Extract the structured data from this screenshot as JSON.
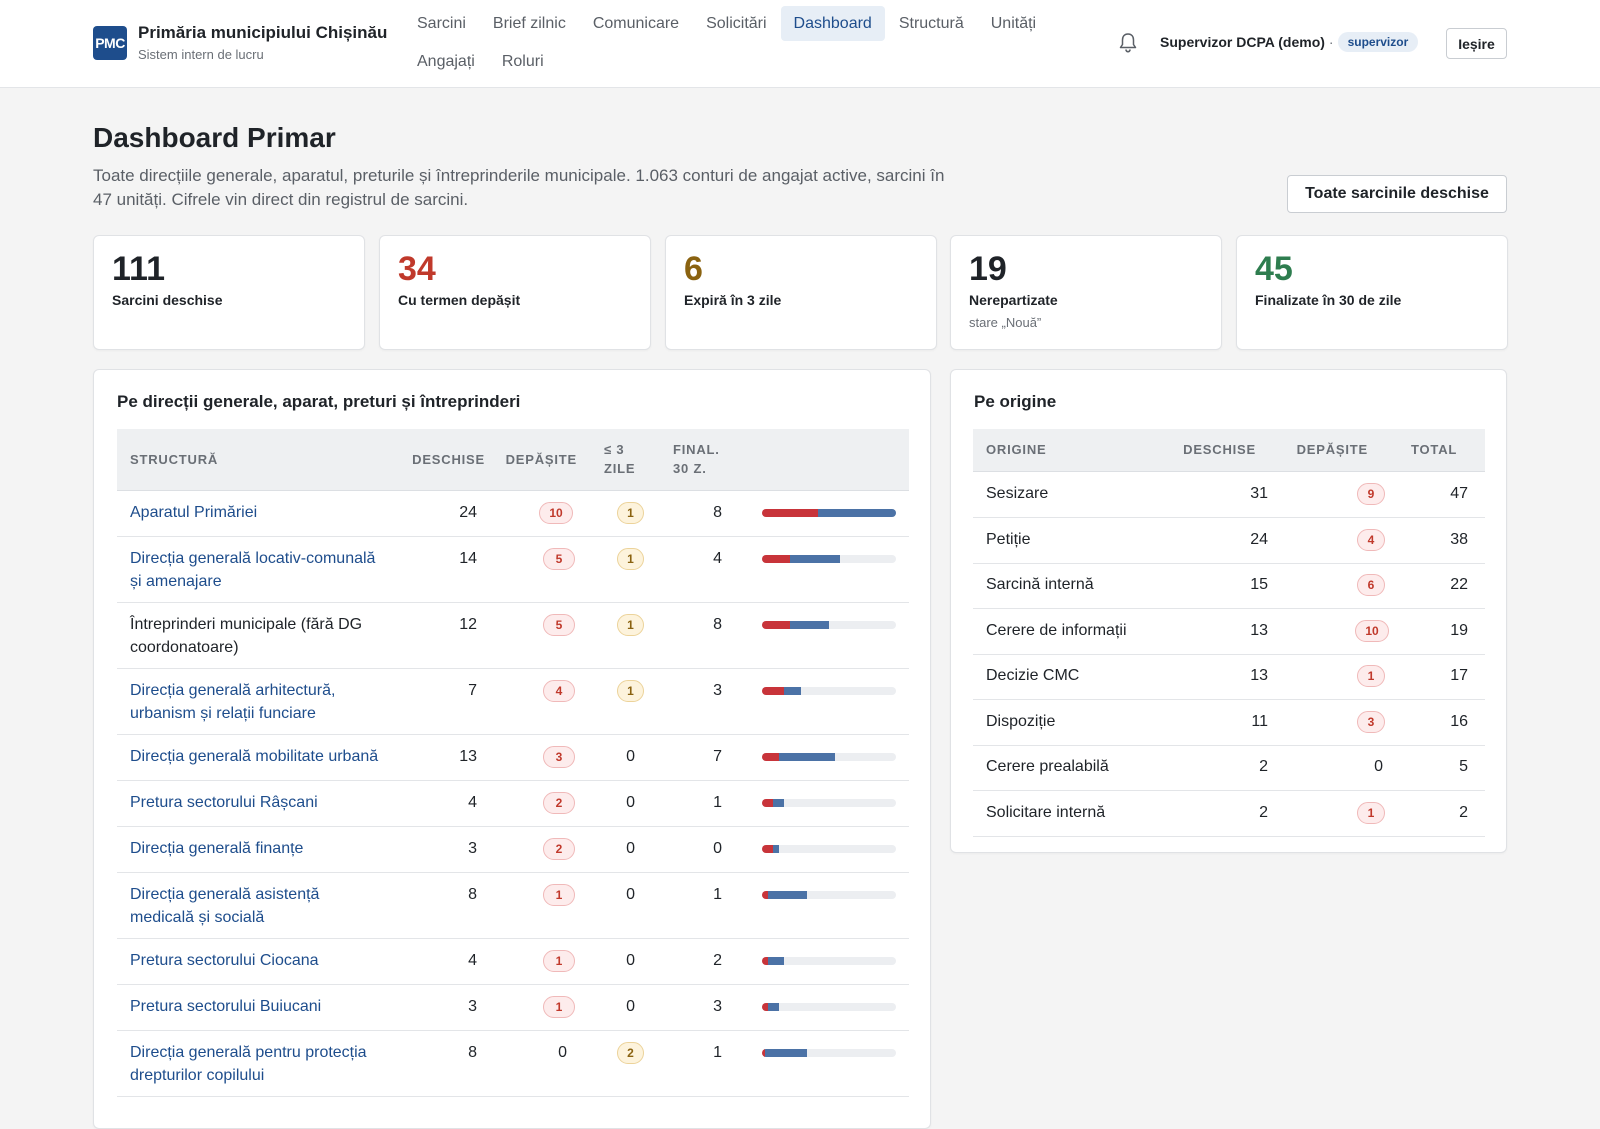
{
  "header": {
    "logo": "PMC",
    "title": "Primăria municipiului Chișinău",
    "subtitle": "Sistem intern de lucru",
    "nav": [
      "Sarcini",
      "Brief zilnic",
      "Comunicare",
      "Solicitări",
      "Dashboard",
      "Structură",
      "Unități",
      "Angajați",
      "Roluri"
    ],
    "active_nav": "Dashboard",
    "user_name": "Supervizor DCPA (demo)",
    "separator": "·",
    "role": "supervizor",
    "logout": "Ieșire"
  },
  "page": {
    "title": "Dashboard Primar",
    "description": "Toate direcțiile generale, aparatul, preturile și întreprinderile municipale. 1.063 conturi de angajat active, sarcini în 47 unități. Cifrele vin direct din registrul de sarcini.",
    "all_tasks_button": "Toate sarcinile deschise"
  },
  "kpis": [
    {
      "value": "111",
      "label": "Sarcini deschise",
      "sub": "",
      "color": "#1f2328"
    },
    {
      "value": "34",
      "label": "Cu termen depășit",
      "sub": "",
      "color": "#c0392b"
    },
    {
      "value": "6",
      "label": "Expiră în 3 zile",
      "sub": "",
      "color": "#8a6210"
    },
    {
      "value": "19",
      "label": "Nerepartizate",
      "sub": "stare „Nouă”",
      "color": "#1f2328"
    },
    {
      "value": "45",
      "label": "Finalizate în 30 de zile",
      "sub": "",
      "color": "#2e7d4f"
    }
  ],
  "structure_panel": {
    "title": "Pe direcții generale, aparat, preturi și întreprinderi",
    "columns": {
      "structure": "Structură",
      "open": "Deschise",
      "overdue": "Depășite",
      "soon_1": "≤ 3",
      "soon_2": "zile",
      "final_1": "Final.",
      "final_2": "30 z."
    },
    "rows": [
      {
        "name": "Aparatul Primăriei",
        "open": 24,
        "overdue": 10,
        "soon": 1,
        "final": 8,
        "link": true
      },
      {
        "name": "Direcția generală locativ-comunală și amenajare",
        "open": 14,
        "overdue": 5,
        "soon": 1,
        "final": 4,
        "link": true
      },
      {
        "name": "Întreprinderi municipale (fără DG coordonatoare)",
        "open": 12,
        "overdue": 5,
        "soon": 1,
        "final": 8,
        "link": false
      },
      {
        "name": "Direcția generală arhitectură, urbanism și relații funciare",
        "open": 7,
        "overdue": 4,
        "soon": 1,
        "final": 3,
        "link": true
      },
      {
        "name": "Direcția generală mobilitate urbană",
        "open": 13,
        "overdue": 3,
        "soon": 0,
        "final": 7,
        "link": true
      },
      {
        "name": "Pretura sectorului Râșcani",
        "open": 4,
        "overdue": 2,
        "soon": 0,
        "final": 1,
        "link": true
      },
      {
        "name": "Direcția generală finanțe",
        "open": 3,
        "overdue": 2,
        "soon": 0,
        "final": 0,
        "link": true
      },
      {
        "name": "Direcția generală asistență medicală și socială",
        "open": 8,
        "overdue": 1,
        "soon": 0,
        "final": 1,
        "link": true
      },
      {
        "name": "Pretura sectorului Ciocana",
        "open": 4,
        "overdue": 1,
        "soon": 0,
        "final": 2,
        "link": true
      },
      {
        "name": "Pretura sectorului Buiucani",
        "open": 3,
        "overdue": 1,
        "soon": 0,
        "final": 3,
        "link": true
      },
      {
        "name": "Direcția generală pentru protecția drepturilor copilului",
        "open": 8,
        "overdue": 0,
        "soon": 2,
        "final": 1,
        "link": true
      }
    ]
  },
  "origin_panel": {
    "title": "Pe origine",
    "columns": {
      "origin": "Origine",
      "open": "Deschise",
      "overdue": "Depășite",
      "total": "Total"
    },
    "rows": [
      {
        "name": "Sesizare",
        "open": 31,
        "overdue": 9,
        "total": 47
      },
      {
        "name": "Petiție",
        "open": 24,
        "overdue": 4,
        "total": 38
      },
      {
        "name": "Sarcină internă",
        "open": 15,
        "overdue": 6,
        "total": 22
      },
      {
        "name": "Cerere de informații",
        "open": 13,
        "overdue": 10,
        "total": 19
      },
      {
        "name": "Decizie CMC",
        "open": 13,
        "overdue": 1,
        "total": 17
      },
      {
        "name": "Dispoziție",
        "open": 11,
        "overdue": 3,
        "total": 16
      },
      {
        "name": "Cerere prealabilă",
        "open": 2,
        "overdue": 0,
        "total": 5
      },
      {
        "name": "Solicitare internă",
        "open": 2,
        "overdue": 1,
        "total": 2
      }
    ]
  }
}
